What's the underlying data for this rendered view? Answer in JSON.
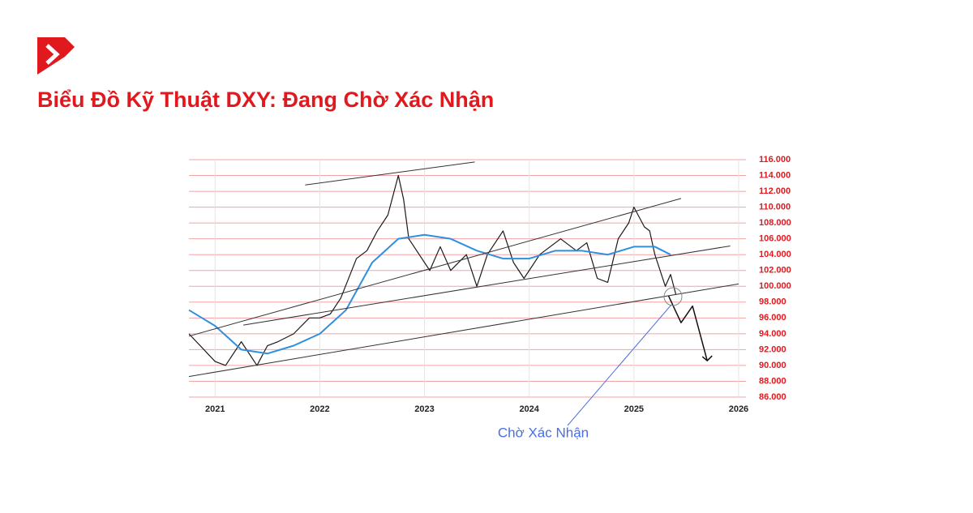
{
  "chart_data": {
    "type": "line",
    "title": "Biểu Đồ Kỹ Thuật DXY: Đang Chờ Xác Nhận",
    "annotation": "Chờ Xác Nhận",
    "xlim": [
      2020.75,
      2026.07
    ],
    "xticks": [
      2021,
      2022,
      2023,
      2024,
      2025,
      2026
    ],
    "ylim": [
      86,
      116
    ],
    "yticks": [
      {
        "value": 86,
        "label": "86.000"
      },
      {
        "value": 88,
        "label": "88.000"
      },
      {
        "value": 90,
        "label": "90.000"
      },
      {
        "value": 92,
        "label": "92.000"
      },
      {
        "value": 94,
        "label": "94.000"
      },
      {
        "value": 96,
        "label": "96.000"
      },
      {
        "value": 98,
        "label": "98.000"
      },
      {
        "value": 100,
        "label": "100.000"
      },
      {
        "value": 102,
        "label": "102.000"
      },
      {
        "value": 104,
        "label": "104.000"
      },
      {
        "value": 106,
        "label": "106.000"
      },
      {
        "value": 108,
        "label": "108.000"
      },
      {
        "value": 110,
        "label": "110.000"
      },
      {
        "value": 112,
        "label": "112.000"
      },
      {
        "value": 114,
        "label": "114.000"
      },
      {
        "value": 116,
        "label": "116.000"
      }
    ],
    "grid": true,
    "grid_color": "#f3a3a3",
    "tick_label_color": "#e0191e",
    "series": [
      {
        "color": "#1a1a1a",
        "width": 1.2,
        "x": [
          2020.75,
          2021.0,
          2021.1,
          2021.25,
          2021.4,
          2021.5,
          2021.6,
          2021.75,
          2021.9,
          2022.0,
          2022.1,
          2022.2,
          2022.35,
          2022.45,
          2022.55,
          2022.65,
          2022.75,
          2022.8,
          2022.85,
          2022.95,
          2023.05,
          2023.15,
          2023.25,
          2023.4,
          2023.5,
          2023.6,
          2023.75,
          2023.85,
          2023.95,
          2024.1,
          2024.3,
          2024.45,
          2024.55,
          2024.65,
          2024.75,
          2024.85,
          2024.95,
          2025.0,
          2025.1,
          2025.15,
          2025.2,
          2025.3,
          2025.35,
          2025.4
        ],
        "values": [
          94,
          90.5,
          90,
          93,
          90,
          92.5,
          93,
          94,
          96,
          96,
          96.5,
          98.5,
          103.5,
          104.5,
          107,
          109,
          114,
          111,
          106,
          104,
          102,
          105,
          102,
          104,
          100,
          104,
          107,
          103,
          101,
          104,
          106,
          104.5,
          105.5,
          101,
          100.5,
          106,
          108,
          110,
          107.5,
          107,
          104,
          100,
          101.5,
          99
        ]
      },
      {
        "color": "#2f8fe0",
        "width": 2,
        "x": [
          2020.75,
          2021.0,
          2021.25,
          2021.5,
          2021.75,
          2022.0,
          2022.25,
          2022.5,
          2022.75,
          2023.0,
          2023.25,
          2023.5,
          2023.75,
          2024.0,
          2024.25,
          2024.5,
          2024.75,
          2025.0,
          2025.2,
          2025.35
        ],
        "values": [
          97,
          95,
          92,
          91.5,
          92.5,
          94,
          97,
          103,
          106,
          106.5,
          106,
          104.5,
          103.5,
          103.5,
          104.5,
          104.5,
          104,
          105,
          105,
          104
        ]
      },
      {
        "color": "#333333",
        "width": 1,
        "x": [
          2020.75,
          2025.45
        ],
        "values": [
          93.7,
          111.1
        ]
      },
      {
        "color": "#333333",
        "width": 1,
        "x": [
          2021.27,
          2025.92
        ],
        "values": [
          95.1,
          105.1
        ]
      },
      {
        "color": "#333333",
        "width": 1,
        "x": [
          2020.75,
          2026.0
        ],
        "values": [
          88.6,
          100.3
        ]
      },
      {
        "color": "#333333",
        "width": 1,
        "x": [
          2021.86,
          2023.48
        ],
        "values": [
          112.8,
          115.7
        ]
      },
      {
        "color": "#111111",
        "width": 1.5,
        "x": [
          2025.33,
          2025.45,
          2025.56,
          2025.7
        ],
        "values": [
          98.8,
          95.4,
          97.5,
          90.6
        ]
      }
    ]
  }
}
